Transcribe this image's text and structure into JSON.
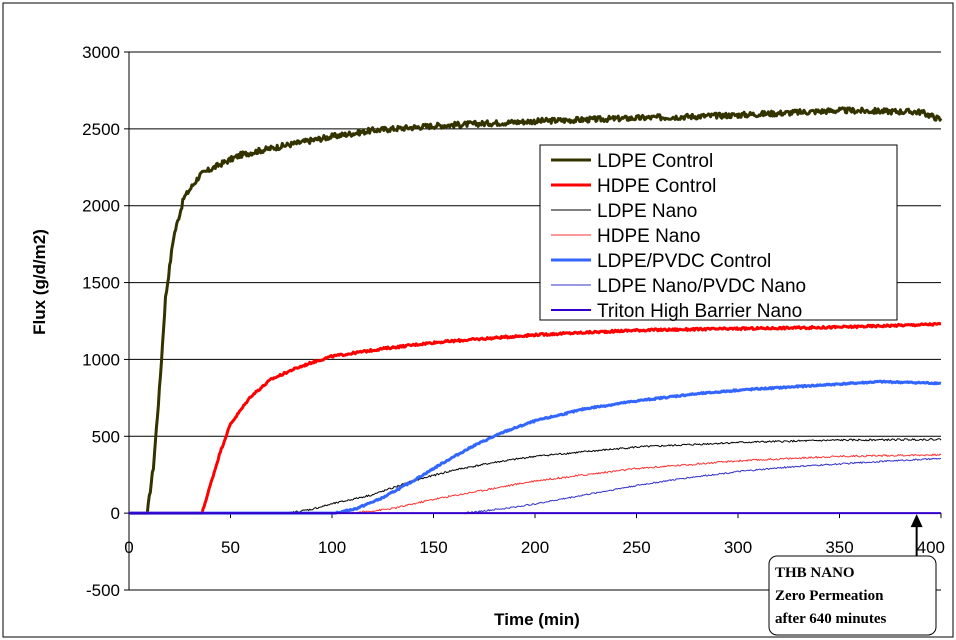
{
  "chart_data": {
    "type": "line",
    "title": "",
    "xlabel": "Time (min)",
    "ylabel": "Flux (g/d/m2)",
    "xlim": [
      0,
      400
    ],
    "ylim": [
      -500,
      3000
    ],
    "xticks": [
      0,
      50,
      100,
      150,
      200,
      250,
      300,
      350,
      400
    ],
    "yticks": [
      -500,
      0,
      500,
      1000,
      1500,
      2000,
      2500,
      3000
    ],
    "grid": "horizontal",
    "legend_position": "center-right",
    "series": [
      {
        "name": "LDPE Control",
        "color": "#333300",
        "width": 3,
        "noise": 18,
        "points": [
          [
            0,
            0
          ],
          [
            9,
            0
          ],
          [
            12,
            300
          ],
          [
            15,
            800
          ],
          [
            18,
            1400
          ],
          [
            22,
            1800
          ],
          [
            27,
            2050
          ],
          [
            35,
            2200
          ],
          [
            45,
            2270
          ],
          [
            55,
            2330
          ],
          [
            65,
            2360
          ],
          [
            80,
            2400
          ],
          [
            100,
            2450
          ],
          [
            120,
            2490
          ],
          [
            150,
            2520
          ],
          [
            200,
            2550
          ],
          [
            250,
            2570
          ],
          [
            300,
            2590
          ],
          [
            350,
            2620
          ],
          [
            390,
            2610
          ],
          [
            400,
            2560
          ]
        ]
      },
      {
        "name": "HDPE Control",
        "color": "#ff0000",
        "width": 3,
        "noise": 7,
        "points": [
          [
            0,
            0
          ],
          [
            36,
            0
          ],
          [
            40,
            180
          ],
          [
            45,
            400
          ],
          [
            50,
            580
          ],
          [
            60,
            760
          ],
          [
            70,
            870
          ],
          [
            80,
            930
          ],
          [
            90,
            980
          ],
          [
            100,
            1020
          ],
          [
            125,
            1070
          ],
          [
            150,
            1110
          ],
          [
            200,
            1160
          ],
          [
            250,
            1190
          ],
          [
            300,
            1200
          ],
          [
            350,
            1210
          ],
          [
            400,
            1230
          ]
        ]
      },
      {
        "name": "LDPE Nano",
        "color": "#000000",
        "width": 1,
        "noise": 6,
        "points": [
          [
            0,
            0
          ],
          [
            78,
            0
          ],
          [
            90,
            25
          ],
          [
            100,
            60
          ],
          [
            120,
            120
          ],
          [
            140,
            210
          ],
          [
            160,
            280
          ],
          [
            180,
            330
          ],
          [
            200,
            370
          ],
          [
            250,
            430
          ],
          [
            300,
            460
          ],
          [
            350,
            475
          ],
          [
            400,
            480
          ]
        ]
      },
      {
        "name": "HDPE Nano",
        "color": "#ff3333",
        "width": 1,
        "noise": 6,
        "points": [
          [
            0,
            0
          ],
          [
            110,
            0
          ],
          [
            130,
            30
          ],
          [
            150,
            90
          ],
          [
            175,
            150
          ],
          [
            200,
            210
          ],
          [
            250,
            290
          ],
          [
            300,
            340
          ],
          [
            350,
            370
          ],
          [
            400,
            380
          ]
        ]
      },
      {
        "name": "LDPE/PVDC Control",
        "color": "#3366ff",
        "width": 3,
        "noise": 5,
        "points": [
          [
            0,
            0
          ],
          [
            102,
            0
          ],
          [
            112,
            30
          ],
          [
            125,
            100
          ],
          [
            140,
            210
          ],
          [
            155,
            330
          ],
          [
            170,
            440
          ],
          [
            185,
            530
          ],
          [
            200,
            600
          ],
          [
            225,
            680
          ],
          [
            250,
            730
          ],
          [
            275,
            770
          ],
          [
            300,
            800
          ],
          [
            325,
            820
          ],
          [
            350,
            840
          ],
          [
            370,
            855
          ],
          [
            400,
            845
          ]
        ]
      },
      {
        "name": "LDPE Nano/PVDC Nano",
        "color": "#3333cc",
        "width": 1,
        "noise": 5,
        "points": [
          [
            0,
            0
          ],
          [
            165,
            0
          ],
          [
            185,
            30
          ],
          [
            200,
            60
          ],
          [
            225,
            120
          ],
          [
            250,
            180
          ],
          [
            275,
            230
          ],
          [
            300,
            270
          ],
          [
            325,
            300
          ],
          [
            350,
            320
          ],
          [
            375,
            340
          ],
          [
            400,
            355
          ]
        ]
      },
      {
        "name": "Triton High Barrier Nano",
        "color": "#3300cc",
        "width": 2,
        "noise": 0,
        "points": [
          [
            0,
            0
          ],
          [
            400,
            0
          ]
        ]
      }
    ],
    "annotation": {
      "lines": [
        "THB NANO",
        "Zero Permeation",
        "after 640 minutes"
      ],
      "arrow_to": [
        388,
        0
      ]
    }
  }
}
